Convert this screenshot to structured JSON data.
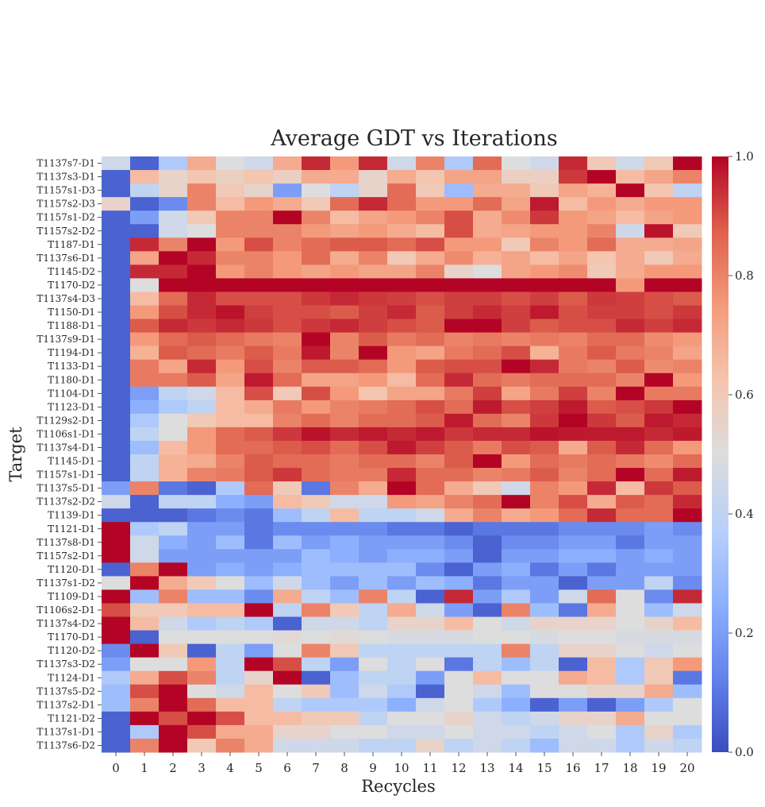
{
  "chart_data": {
    "type": "heatmap",
    "title": "Average GDT vs Iterations",
    "xlabel": "Recycles",
    "ylabel": "Target",
    "x_categories": [
      "0",
      "1",
      "2",
      "3",
      "4",
      "5",
      "6",
      "7",
      "8",
      "9",
      "10",
      "11",
      "12",
      "13",
      "14",
      "15",
      "16",
      "17",
      "18",
      "19",
      "20"
    ],
    "y_categories": [
      "T1137s7-D1",
      "T1137s3-D1",
      "T1157s1-D3",
      "T1157s2-D3",
      "T1157s1-D2",
      "T1157s2-D2",
      "T1187-D1",
      "T1137s6-D1",
      "T1145-D2",
      "T1170-D2",
      "T1137s4-D3",
      "T1150-D1",
      "T1188-D1",
      "T1137s9-D1",
      "T1194-D1",
      "T1133-D1",
      "T1180-D1",
      "T1104-D1",
      "T1123-D1",
      "T1129s2-D1",
      "T1106s1-D1",
      "T1137s4-D1",
      "T1145-D1",
      "T1157s1-D1",
      "T1137s5-D1",
      "T1137s2-D2",
      "T1139-D1",
      "T1121-D1",
      "T1137s8-D1",
      "T1157s2-D1",
      "T1120-D1",
      "T1137s1-D2",
      "T1109-D1",
      "T1106s2-D1",
      "T1137s4-D2",
      "T1170-D1",
      "T1120-D2",
      "T1137s3-D2",
      "T1124-D1",
      "T1137s5-D2",
      "T1137s2-D1",
      "T1121-D2",
      "T1137s1-D1",
      "T1137s6-D2"
    ],
    "colormap": "coolwarm",
    "vmin": 0.0,
    "vmax": 1.0,
    "colorbar_ticks": [
      "0.0",
      "0.2",
      "0.4",
      "0.6",
      "0.8",
      "1.0"
    ],
    "values": [
      [
        0.45,
        0.05,
        0.35,
        0.7,
        0.5,
        0.45,
        0.7,
        0.95,
        0.75,
        0.95,
        0.45,
        0.8,
        0.35,
        0.85,
        0.5,
        0.45,
        0.95,
        0.6,
        0.45,
        0.6,
        1.0
      ],
      [
        0.05,
        0.65,
        0.55,
        0.62,
        0.57,
        0.62,
        0.57,
        0.7,
        0.7,
        0.55,
        0.7,
        0.62,
        0.72,
        0.72,
        0.57,
        0.57,
        0.93,
        1.0,
        0.65,
        0.72,
        0.8
      ],
      [
        0.05,
        0.4,
        0.55,
        0.8,
        0.6,
        0.55,
        0.2,
        0.5,
        0.4,
        0.55,
        0.85,
        0.6,
        0.3,
        0.7,
        0.7,
        0.6,
        0.72,
        0.68,
        1.0,
        0.62,
        0.4
      ],
      [
        0.55,
        0.05,
        0.15,
        0.8,
        0.65,
        0.75,
        0.7,
        0.6,
        0.85,
        0.95,
        0.85,
        0.75,
        0.75,
        0.85,
        0.72,
        0.97,
        0.65,
        0.75,
        0.7,
        0.75,
        0.75
      ],
      [
        0.05,
        0.2,
        0.45,
        0.6,
        0.8,
        0.8,
        1.0,
        0.8,
        0.65,
        0.72,
        0.75,
        0.8,
        0.9,
        0.7,
        0.78,
        0.93,
        0.75,
        0.72,
        0.65,
        0.72,
        0.75
      ],
      [
        0.05,
        0.05,
        0.45,
        0.5,
        0.8,
        0.8,
        0.8,
        0.75,
        0.72,
        0.75,
        0.7,
        0.65,
        0.9,
        0.7,
        0.72,
        0.75,
        0.75,
        0.8,
        0.45,
        0.98,
        0.6
      ],
      [
        0.05,
        0.95,
        0.8,
        1.0,
        0.75,
        0.9,
        0.8,
        0.85,
        0.88,
        0.88,
        0.85,
        0.9,
        0.75,
        0.75,
        0.6,
        0.8,
        0.75,
        0.85,
        0.7,
        0.7,
        0.72
      ],
      [
        0.05,
        0.72,
        1.0,
        0.95,
        0.8,
        0.8,
        0.75,
        0.85,
        0.7,
        0.8,
        0.6,
        0.7,
        0.78,
        0.68,
        0.72,
        0.65,
        0.72,
        0.62,
        0.7,
        0.6,
        0.7
      ],
      [
        0.05,
        0.95,
        0.95,
        1.0,
        0.75,
        0.8,
        0.75,
        0.72,
        0.75,
        0.72,
        0.72,
        0.8,
        0.55,
        0.5,
        0.72,
        0.75,
        0.78,
        0.6,
        0.7,
        0.75,
        0.75
      ],
      [
        0.05,
        0.5,
        1.0,
        1.0,
        1.0,
        1.0,
        1.0,
        1.0,
        1.0,
        1.0,
        1.0,
        1.0,
        1.0,
        1.0,
        1.0,
        1.0,
        1.0,
        1.0,
        0.75,
        1.0,
        1.0
      ],
      [
        0.05,
        0.65,
        0.85,
        0.95,
        0.9,
        0.9,
        0.9,
        0.93,
        0.95,
        0.93,
        0.92,
        0.9,
        0.92,
        0.92,
        0.9,
        0.92,
        0.88,
        0.93,
        0.92,
        0.9,
        0.88
      ],
      [
        0.05,
        0.75,
        0.9,
        0.95,
        0.98,
        0.92,
        0.9,
        0.9,
        0.88,
        0.92,
        0.95,
        0.88,
        0.92,
        0.95,
        0.92,
        0.97,
        0.9,
        0.92,
        0.92,
        0.9,
        0.93
      ],
      [
        0.05,
        0.88,
        0.95,
        0.93,
        0.95,
        0.93,
        0.9,
        0.93,
        0.95,
        0.92,
        0.9,
        0.88,
        1.0,
        1.0,
        0.92,
        0.88,
        0.9,
        0.9,
        0.95,
        0.92,
        0.95
      ],
      [
        0.05,
        0.75,
        0.85,
        0.88,
        0.85,
        0.82,
        0.8,
        1.0,
        0.8,
        0.88,
        0.82,
        0.85,
        0.8,
        0.82,
        0.8,
        0.82,
        0.8,
        0.85,
        0.85,
        0.78,
        0.75
      ],
      [
        0.05,
        0.68,
        0.88,
        0.85,
        0.82,
        0.88,
        0.82,
        0.97,
        0.8,
        1.0,
        0.75,
        0.72,
        0.82,
        0.85,
        0.9,
        0.68,
        0.82,
        0.88,
        0.82,
        0.8,
        0.72
      ],
      [
        0.05,
        0.82,
        0.72,
        0.95,
        0.75,
        0.9,
        0.8,
        0.88,
        0.88,
        0.85,
        0.75,
        0.88,
        0.9,
        0.9,
        1.0,
        0.95,
        0.82,
        0.8,
        0.88,
        0.78,
        0.8
      ],
      [
        0.05,
        0.82,
        0.82,
        0.88,
        0.72,
        0.97,
        0.85,
        0.72,
        0.72,
        0.75,
        0.65,
        0.85,
        0.95,
        0.85,
        0.82,
        0.85,
        0.85,
        0.85,
        0.8,
        1.0,
        0.75
      ],
      [
        0.05,
        0.2,
        0.4,
        0.45,
        0.65,
        0.9,
        0.6,
        0.9,
        0.75,
        0.62,
        0.72,
        0.72,
        0.82,
        0.92,
        0.72,
        0.82,
        0.92,
        0.8,
        1.0,
        0.82,
        0.82
      ],
      [
        0.05,
        0.25,
        0.35,
        0.4,
        0.65,
        0.7,
        0.82,
        0.75,
        0.8,
        0.82,
        0.85,
        0.9,
        0.85,
        0.97,
        0.9,
        0.92,
        0.97,
        0.88,
        0.9,
        0.93,
        1.0
      ],
      [
        0.05,
        0.35,
        0.5,
        0.6,
        0.65,
        0.65,
        0.8,
        0.85,
        0.8,
        0.85,
        0.85,
        0.88,
        0.97,
        0.85,
        0.8,
        0.93,
        1.0,
        0.93,
        0.88,
        0.97,
        0.95
      ],
      [
        0.05,
        0.4,
        0.5,
        0.75,
        0.85,
        0.88,
        0.93,
        0.98,
        0.95,
        0.97,
        0.95,
        0.97,
        0.93,
        0.95,
        0.95,
        0.98,
        0.97,
        0.97,
        0.97,
        0.95,
        0.97
      ],
      [
        0.05,
        0.3,
        0.65,
        0.75,
        0.85,
        0.85,
        0.88,
        0.9,
        0.85,
        0.9,
        0.97,
        0.92,
        0.88,
        0.82,
        0.9,
        0.88,
        0.7,
        0.88,
        0.95,
        0.85,
        0.75
      ],
      [
        0.05,
        0.4,
        0.68,
        0.7,
        0.8,
        0.88,
        0.85,
        0.85,
        0.82,
        0.85,
        0.85,
        0.8,
        0.88,
        1.0,
        0.75,
        0.85,
        0.82,
        0.85,
        0.82,
        0.78,
        0.85
      ],
      [
        0.05,
        0.4,
        0.68,
        0.8,
        0.82,
        0.88,
        0.93,
        0.85,
        0.82,
        0.82,
        0.95,
        0.85,
        0.85,
        0.8,
        0.82,
        0.88,
        0.8,
        0.85,
        1.0,
        0.85,
        0.97
      ],
      [
        0.2,
        0.8,
        0.1,
        0.05,
        0.35,
        0.85,
        0.6,
        0.1,
        0.8,
        0.7,
        1.0,
        0.85,
        0.7,
        0.6,
        0.45,
        0.8,
        0.75,
        0.95,
        0.65,
        0.93,
        0.88
      ],
      [
        0.45,
        0.05,
        0.4,
        0.4,
        0.25,
        0.2,
        0.65,
        0.6,
        0.45,
        0.45,
        0.75,
        0.72,
        0.8,
        0.85,
        1.0,
        0.8,
        0.9,
        0.7,
        0.88,
        0.85,
        0.95
      ],
      [
        0.05,
        0.05,
        0.05,
        0.1,
        0.15,
        0.1,
        0.3,
        0.4,
        0.65,
        0.4,
        0.4,
        0.45,
        0.7,
        0.8,
        0.7,
        0.75,
        0.85,
        0.95,
        0.85,
        0.85,
        1.0
      ],
      [
        1.0,
        0.35,
        0.4,
        0.2,
        0.2,
        0.1,
        0.15,
        0.15,
        0.15,
        0.15,
        0.1,
        0.1,
        0.05,
        0.1,
        0.1,
        0.1,
        0.15,
        0.15,
        0.15,
        0.2,
        0.15
      ],
      [
        1.0,
        0.45,
        0.25,
        0.2,
        0.3,
        0.1,
        0.3,
        0.2,
        0.25,
        0.2,
        0.2,
        0.2,
        0.15,
        0.05,
        0.15,
        0.15,
        0.2,
        0.2,
        0.1,
        0.2,
        0.2
      ],
      [
        1.0,
        0.45,
        0.2,
        0.2,
        0.2,
        0.2,
        0.2,
        0.3,
        0.25,
        0.2,
        0.25,
        0.25,
        0.2,
        0.05,
        0.2,
        0.2,
        0.25,
        0.25,
        0.2,
        0.25,
        0.2
      ],
      [
        0.05,
        0.8,
        1.0,
        0.2,
        0.25,
        0.2,
        0.25,
        0.3,
        0.3,
        0.3,
        0.3,
        0.15,
        0.05,
        0.2,
        0.25,
        0.1,
        0.2,
        0.1,
        0.2,
        0.2,
        0.2
      ],
      [
        0.5,
        1.0,
        0.7,
        0.6,
        0.5,
        0.3,
        0.45,
        0.3,
        0.2,
        0.3,
        0.2,
        0.3,
        0.25,
        0.1,
        0.2,
        0.2,
        0.05,
        0.2,
        0.2,
        0.4,
        0.15
      ],
      [
        1.0,
        0.3,
        0.8,
        0.3,
        0.3,
        0.15,
        0.7,
        0.4,
        0.3,
        0.8,
        0.4,
        0.05,
        0.95,
        0.2,
        0.35,
        0.2,
        0.45,
        0.85,
        0.5,
        0.15,
        0.95
      ],
      [
        0.9,
        0.6,
        0.6,
        0.65,
        0.65,
        1.0,
        0.4,
        0.8,
        0.6,
        0.4,
        0.7,
        0.45,
        0.2,
        0.05,
        0.8,
        0.3,
        0.1,
        0.7,
        0.5,
        0.3,
        0.45
      ],
      [
        1.0,
        0.65,
        0.45,
        0.35,
        0.4,
        0.35,
        0.05,
        0.45,
        0.45,
        0.4,
        0.55,
        0.55,
        0.65,
        0.5,
        0.45,
        0.55,
        0.55,
        0.55,
        0.5,
        0.55,
        0.65
      ],
      [
        1.0,
        0.05,
        0.5,
        0.5,
        0.5,
        0.5,
        0.52,
        0.5,
        0.52,
        0.5,
        0.48,
        0.48,
        0.48,
        0.5,
        0.5,
        0.48,
        0.5,
        0.5,
        0.48,
        0.48,
        0.48
      ],
      [
        0.15,
        1.0,
        0.6,
        0.05,
        0.4,
        0.2,
        0.5,
        0.8,
        0.6,
        0.4,
        0.4,
        0.4,
        0.4,
        0.4,
        0.8,
        0.4,
        0.55,
        0.55,
        0.5,
        0.45,
        0.5
      ],
      [
        0.2,
        0.5,
        0.5,
        0.75,
        0.4,
        1.0,
        0.9,
        0.4,
        0.2,
        0.5,
        0.4,
        0.5,
        0.1,
        0.4,
        0.3,
        0.4,
        0.05,
        0.65,
        0.35,
        0.6,
        0.75
      ],
      [
        0.35,
        0.7,
        0.9,
        0.8,
        0.4,
        0.55,
        1.0,
        0.05,
        0.3,
        0.4,
        0.4,
        0.2,
        0.5,
        0.65,
        0.5,
        0.5,
        0.7,
        0.65,
        0.35,
        0.6,
        0.1
      ],
      [
        0.3,
        0.9,
        1.0,
        0.5,
        0.45,
        0.65,
        0.5,
        0.6,
        0.3,
        0.45,
        0.35,
        0.05,
        0.5,
        0.45,
        0.3,
        0.5,
        0.5,
        0.55,
        0.55,
        0.7,
        0.3
      ],
      [
        0.3,
        0.8,
        1.0,
        0.85,
        0.65,
        0.65,
        0.4,
        0.35,
        0.35,
        0.35,
        0.25,
        0.45,
        0.5,
        0.35,
        0.25,
        0.05,
        0.2,
        0.05,
        0.2,
        0.35,
        0.5
      ],
      [
        0.05,
        1.0,
        0.9,
        1.0,
        0.9,
        0.65,
        0.65,
        0.6,
        0.6,
        0.4,
        0.5,
        0.5,
        0.55,
        0.45,
        0.4,
        0.45,
        0.55,
        0.55,
        0.7,
        0.5,
        0.5
      ],
      [
        0.05,
        0.35,
        1.0,
        0.9,
        0.7,
        0.7,
        0.55,
        0.55,
        0.5,
        0.5,
        0.45,
        0.45,
        0.5,
        0.45,
        0.45,
        0.4,
        0.45,
        0.5,
        0.35,
        0.55,
        0.35
      ],
      [
        0.05,
        0.8,
        1.0,
        0.6,
        0.8,
        0.7,
        0.45,
        0.45,
        0.45,
        0.4,
        0.4,
        0.55,
        0.4,
        0.45,
        0.4,
        0.3,
        0.45,
        0.45,
        0.35,
        0.45,
        0.4
      ]
    ]
  }
}
